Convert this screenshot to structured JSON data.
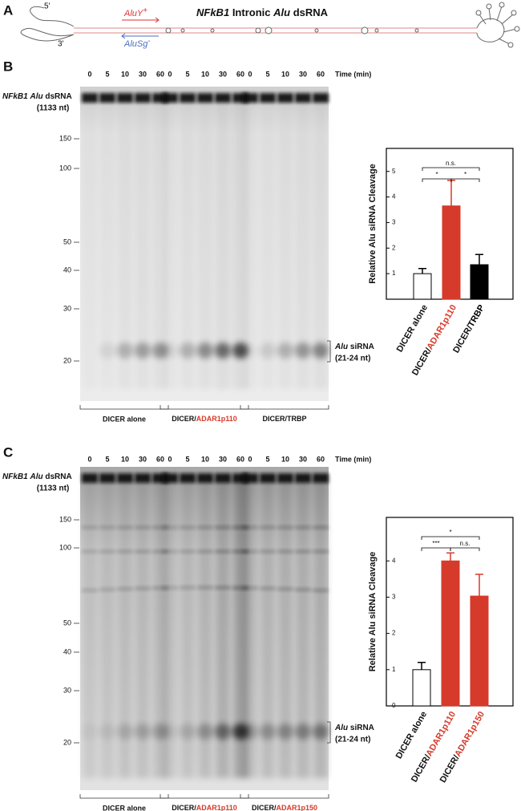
{
  "figure": {
    "panel_a": {
      "label": "A",
      "title": [
        "NFkB1",
        "Intronic",
        "Alu",
        "dsRNA"
      ],
      "five_prime": "5'",
      "three_prime": "3'",
      "sense": "AluY",
      "sense_sign": "+",
      "antisense": "AluSg",
      "antisense_sign": "-"
    },
    "panel_b": {
      "label": "B",
      "lanes": [
        "0",
        "5",
        "10",
        "30",
        "60"
      ],
      "time_label": "Time (min)",
      "substrate": [
        "NFkB1",
        "Alu",
        "dsRNA"
      ],
      "substrate_length": "(1133 nt)",
      "markers": [
        "150",
        "100",
        "50",
        "40",
        "30",
        "20"
      ],
      "product": [
        "Alu",
        "siRNA"
      ],
      "product_length": "(21-24 nt)",
      "groups": [
        "DICER alone",
        "DICER/ADAR1p110",
        "DICER/TRBP"
      ]
    },
    "panel_c": {
      "label": "C",
      "lanes": [
        "0",
        "5",
        "10",
        "30",
        "60"
      ],
      "time_label": "Time (min)",
      "substrate": [
        "NFkB1",
        "Alu",
        "dsRNA"
      ],
      "substrate_length": "(1133 nt)",
      "markers": [
        "150",
        "100",
        "50",
        "40",
        "30",
        "20"
      ],
      "product": [
        "Alu",
        "siRNA"
      ],
      "product_length": "(21-24 nt)",
      "groups": [
        "DICER alone",
        "DICER/ADAR1p110",
        "DICER/ADAR1p150"
      ]
    }
  },
  "chart_data": [
    {
      "type": "bar",
      "y_label": "Relative Alu siRNA Cleavage",
      "categories": [
        "DICER alone",
        "DICER/ADAR1p110",
        "DICER/TRBP"
      ],
      "values": [
        1.0,
        3.65,
        1.35
      ],
      "errors": [
        0.2,
        1.0,
        0.4
      ],
      "colors": [
        "#ffffff",
        "#d63a2a",
        "#000000"
      ],
      "ylim": [
        0,
        5.9
      ],
      "yticks": [
        1,
        2,
        3,
        4,
        5
      ],
      "comparisons": [
        {
          "between": [
            0,
            2
          ],
          "label": "n.s."
        },
        {
          "between": [
            0,
            1
          ],
          "label": "*"
        },
        {
          "between": [
            1,
            2
          ],
          "label": "*"
        }
      ]
    },
    {
      "type": "bar",
      "y_label": "Relative Alu siRNA Cleavage",
      "categories": [
        "DICER alone",
        "DICER/ADAR1p110",
        "DICER/ADAR1p150"
      ],
      "values": [
        1.0,
        4.0,
        3.03
      ],
      "errors": [
        0.2,
        0.22,
        0.6
      ],
      "colors": [
        "#ffffff",
        "#d63a2a",
        "#d63a2a"
      ],
      "ylim": [
        0,
        5.2
      ],
      "yticks": [
        0,
        1,
        2,
        3,
        4
      ],
      "comparisons": [
        {
          "between": [
            0,
            2
          ],
          "label": "*"
        },
        {
          "between": [
            0,
            1
          ],
          "label": "***"
        },
        {
          "between": [
            1,
            2
          ],
          "label": "n.s."
        }
      ]
    }
  ]
}
